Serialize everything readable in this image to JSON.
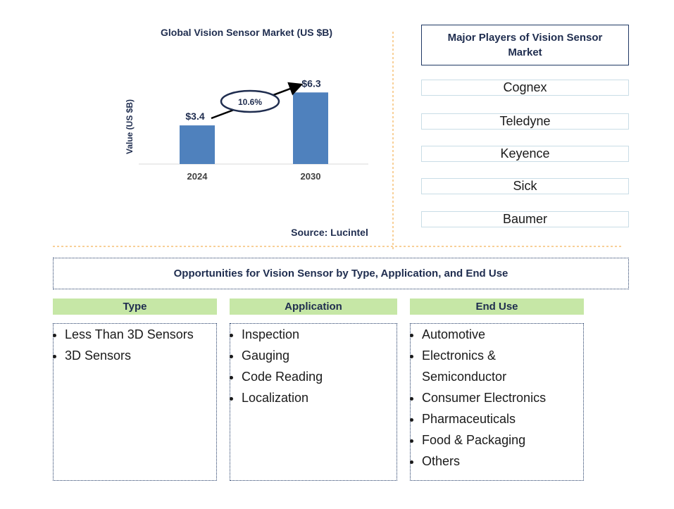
{
  "chart_data": {
    "type": "bar",
    "title": "Global Vision Sensor Market (US $B)",
    "y_label": "Value (US $B)",
    "categories": [
      "2024",
      "2030"
    ],
    "values": [
      3.4,
      6.3
    ],
    "value_labels": [
      "$3.4",
      "$6.3"
    ],
    "color": "#4f81bd",
    "ylim": [
      0,
      7
    ],
    "annotation": "10.6%",
    "source": "Source: Lucintel"
  },
  "players": {
    "title": "Major Players of Vision Sensor Market",
    "items": [
      "Cognex",
      "Teledyne",
      "Keyence",
      "Sick",
      "Baumer"
    ]
  },
  "opportunities": {
    "title": "Opportunities for Vision Sensor by Type, Application, and End Use",
    "columns": [
      {
        "header": "Type",
        "items": [
          "Less Than 3D Sensors",
          "3D Sensors"
        ]
      },
      {
        "header": "Application",
        "items": [
          "Inspection",
          "Gauging",
          "Code Reading",
          "Localization"
        ]
      },
      {
        "header": "End Use",
        "items": [
          "Automotive",
          "Electronics & Semiconductor",
          "Consumer Electronics",
          "Pharmaceuticals",
          "Food & Packaging",
          "Others"
        ]
      }
    ]
  }
}
